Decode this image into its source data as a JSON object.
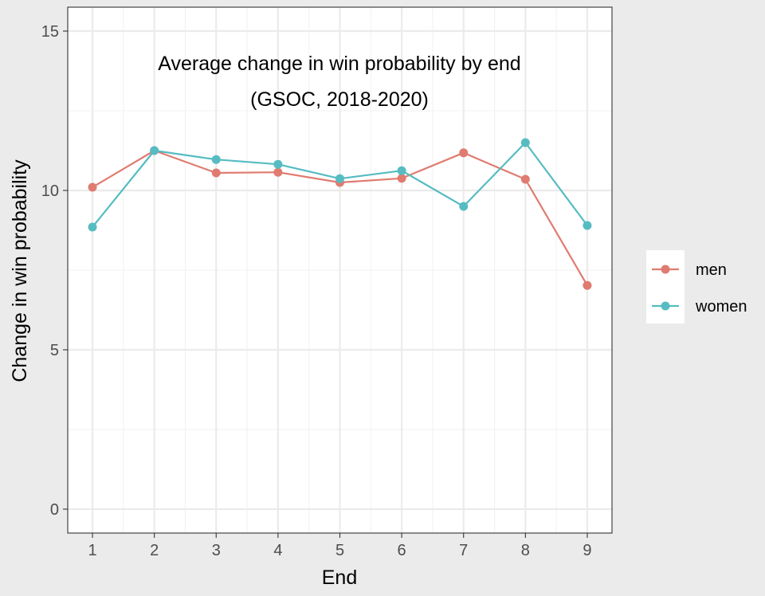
{
  "chart_data": {
    "type": "line",
    "title_line1": "Average change in win probability by end",
    "title_line2": "(GSOC, 2018-2020)",
    "xlabel": "End",
    "ylabel": "Change in win probability",
    "x": [
      1,
      2,
      3,
      4,
      5,
      6,
      7,
      8,
      9
    ],
    "xlim": [
      0.6,
      9.4
    ],
    "ylim": [
      -0.75,
      15.75
    ],
    "yticks": [
      0,
      5,
      10,
      15
    ],
    "grid": true,
    "legend_position": "right",
    "series": [
      {
        "name": "men",
        "color": "#e07b70",
        "values": [
          10.1,
          11.25,
          10.55,
          10.57,
          10.25,
          10.38,
          11.18,
          10.35,
          7.02
        ]
      },
      {
        "name": "women",
        "color": "#56bcc2",
        "values": [
          8.85,
          11.25,
          10.97,
          10.82,
          10.37,
          10.62,
          9.5,
          11.5,
          8.9
        ]
      }
    ]
  }
}
